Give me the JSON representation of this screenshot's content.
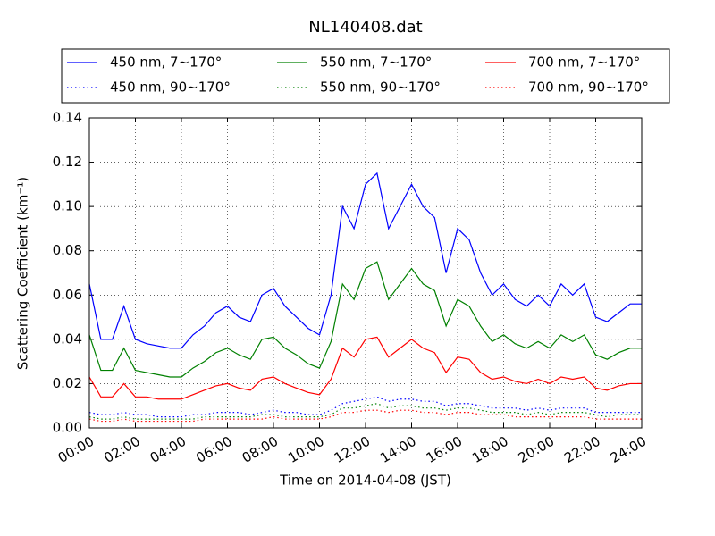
{
  "chart_data": {
    "type": "line",
    "title": "NL140408.dat",
    "xlabel": "Time on 2014-04-08 (JST)",
    "ylabel": "Scattering Coefficient (km⁻¹)",
    "x": [
      0,
      0.5,
      1,
      1.5,
      2,
      2.5,
      3,
      3.5,
      4,
      4.5,
      5,
      5.5,
      6,
      6.5,
      7,
      7.5,
      8,
      8.5,
      9,
      9.5,
      10,
      10.5,
      11,
      11.5,
      12,
      12.5,
      13,
      13.5,
      14,
      14.5,
      15,
      15.5,
      16,
      16.5,
      17,
      17.5,
      18,
      18.5,
      19,
      19.5,
      20,
      20.5,
      21,
      21.5,
      22,
      22.5,
      23,
      23.5,
      24
    ],
    "xlim": [
      0,
      24
    ],
    "xticks": [
      {
        "value": 0,
        "label": "00:00"
      },
      {
        "value": 2,
        "label": "02:00"
      },
      {
        "value": 4,
        "label": "04:00"
      },
      {
        "value": 6,
        "label": "06:00"
      },
      {
        "value": 8,
        "label": "08:00"
      },
      {
        "value": 10,
        "label": "10:00"
      },
      {
        "value": 12,
        "label": "12:00"
      },
      {
        "value": 14,
        "label": "14:00"
      },
      {
        "value": 16,
        "label": "16:00"
      },
      {
        "value": 18,
        "label": "18:00"
      },
      {
        "value": 20,
        "label": "20:00"
      },
      {
        "value": 22,
        "label": "22:00"
      },
      {
        "value": 24,
        "label": "24:00"
      }
    ],
    "ylim": [
      0,
      0.14
    ],
    "yticks": [
      {
        "value": 0,
        "label": "0.00"
      },
      0.02,
      0.04,
      0.06,
      0.08,
      {
        "value": 0.1,
        "label": "0.10"
      },
      0.12,
      0.14
    ],
    "grid": true,
    "series": [
      {
        "name": "450 nm, 7∼170°",
        "color": "#0000ff",
        "linestyle": "solid",
        "values": [
          0.065,
          0.04,
          0.04,
          0.055,
          0.04,
          0.038,
          0.037,
          0.036,
          0.036,
          0.042,
          0.046,
          0.052,
          0.055,
          0.05,
          0.048,
          0.06,
          0.063,
          0.055,
          0.05,
          0.045,
          0.042,
          0.06,
          0.1,
          0.09,
          0.11,
          0.115,
          0.09,
          0.1,
          0.11,
          0.1,
          0.095,
          0.07,
          0.09,
          0.085,
          0.07,
          0.06,
          0.065,
          0.058,
          0.055,
          0.06,
          0.055,
          0.065,
          0.06,
          0.065,
          0.05,
          0.048,
          0.052,
          0.056,
          0.056
        ]
      },
      {
        "name": "450 nm, 90∼170°",
        "color": "#0000ff",
        "linestyle": "dotted",
        "values": [
          0.007,
          0.006,
          0.006,
          0.007,
          0.006,
          0.006,
          0.005,
          0.005,
          0.005,
          0.006,
          0.006,
          0.007,
          0.007,
          0.007,
          0.006,
          0.007,
          0.008,
          0.007,
          0.007,
          0.006,
          0.006,
          0.008,
          0.011,
          0.012,
          0.013,
          0.014,
          0.012,
          0.013,
          0.013,
          0.012,
          0.012,
          0.01,
          0.011,
          0.011,
          0.01,
          0.009,
          0.009,
          0.009,
          0.008,
          0.009,
          0.008,
          0.009,
          0.009,
          0.009,
          0.007,
          0.007,
          0.007,
          0.007,
          0.007
        ]
      },
      {
        "name": "550 nm, 7∼170°",
        "color": "#008000",
        "linestyle": "solid",
        "values": [
          0.042,
          0.026,
          0.026,
          0.036,
          0.026,
          0.025,
          0.024,
          0.023,
          0.023,
          0.027,
          0.03,
          0.034,
          0.036,
          0.033,
          0.031,
          0.04,
          0.041,
          0.036,
          0.033,
          0.029,
          0.027,
          0.039,
          0.065,
          0.058,
          0.072,
          0.075,
          0.058,
          0.065,
          0.072,
          0.065,
          0.062,
          0.046,
          0.058,
          0.055,
          0.046,
          0.039,
          0.042,
          0.038,
          0.036,
          0.039,
          0.036,
          0.042,
          0.039,
          0.042,
          0.033,
          0.031,
          0.034,
          0.036,
          0.036
        ]
      },
      {
        "name": "550 nm, 90∼170°",
        "color": "#008000",
        "linestyle": "dotted",
        "values": [
          0.005,
          0.004,
          0.004,
          0.005,
          0.004,
          0.004,
          0.004,
          0.004,
          0.004,
          0.004,
          0.005,
          0.005,
          0.005,
          0.005,
          0.005,
          0.006,
          0.006,
          0.005,
          0.005,
          0.005,
          0.005,
          0.006,
          0.009,
          0.009,
          0.01,
          0.011,
          0.009,
          0.01,
          0.01,
          0.009,
          0.009,
          0.008,
          0.009,
          0.009,
          0.008,
          0.007,
          0.007,
          0.007,
          0.006,
          0.007,
          0.006,
          0.007,
          0.007,
          0.007,
          0.006,
          0.005,
          0.006,
          0.006,
          0.006
        ]
      },
      {
        "name": "700 nm, 7∼170°",
        "color": "#ff0000",
        "linestyle": "solid",
        "values": [
          0.023,
          0.014,
          0.014,
          0.02,
          0.014,
          0.014,
          0.013,
          0.013,
          0.013,
          0.015,
          0.017,
          0.019,
          0.02,
          0.018,
          0.017,
          0.022,
          0.023,
          0.02,
          0.018,
          0.016,
          0.015,
          0.022,
          0.036,
          0.032,
          0.04,
          0.041,
          0.032,
          0.036,
          0.04,
          0.036,
          0.034,
          0.025,
          0.032,
          0.031,
          0.025,
          0.022,
          0.023,
          0.021,
          0.02,
          0.022,
          0.02,
          0.023,
          0.022,
          0.023,
          0.018,
          0.017,
          0.019,
          0.02,
          0.02
        ]
      },
      {
        "name": "700 nm, 90∼170°",
        "color": "#ff0000",
        "linestyle": "dotted",
        "values": [
          0.004,
          0.003,
          0.003,
          0.004,
          0.003,
          0.003,
          0.003,
          0.003,
          0.003,
          0.003,
          0.004,
          0.004,
          0.004,
          0.004,
          0.004,
          0.004,
          0.005,
          0.004,
          0.004,
          0.004,
          0.004,
          0.005,
          0.007,
          0.007,
          0.008,
          0.008,
          0.007,
          0.008,
          0.008,
          0.007,
          0.007,
          0.006,
          0.007,
          0.007,
          0.006,
          0.006,
          0.006,
          0.005,
          0.005,
          0.005,
          0.005,
          0.005,
          0.005,
          0.005,
          0.004,
          0.004,
          0.004,
          0.004,
          0.004
        ]
      }
    ]
  }
}
